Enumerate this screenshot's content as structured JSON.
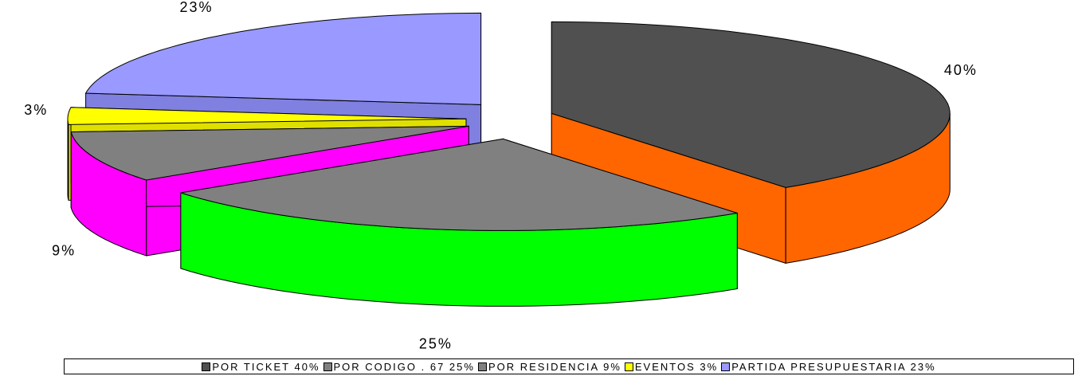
{
  "chart_data": {
    "type": "pie3d",
    "categories": [
      "POR TICKET 40%",
      "POR CODIGO . 67  25%",
      "POR RESIDENCIA  9%",
      "EVENTOS  3%",
      "PARTIDA PRESUPUESTARIA 23%"
    ],
    "values": [
      40,
      25,
      9,
      3,
      23
    ],
    "value_labels": [
      "40%",
      "25%",
      "9%",
      "3%",
      "23%"
    ],
    "colors": [
      "#505050",
      "#808080",
      "#808080",
      "#ffff00",
      "#9999ff"
    ],
    "side_colors": [
      "#ff6600",
      "#00ff00",
      "#ff00ff",
      "#e0e000",
      "#8080e0"
    ]
  }
}
